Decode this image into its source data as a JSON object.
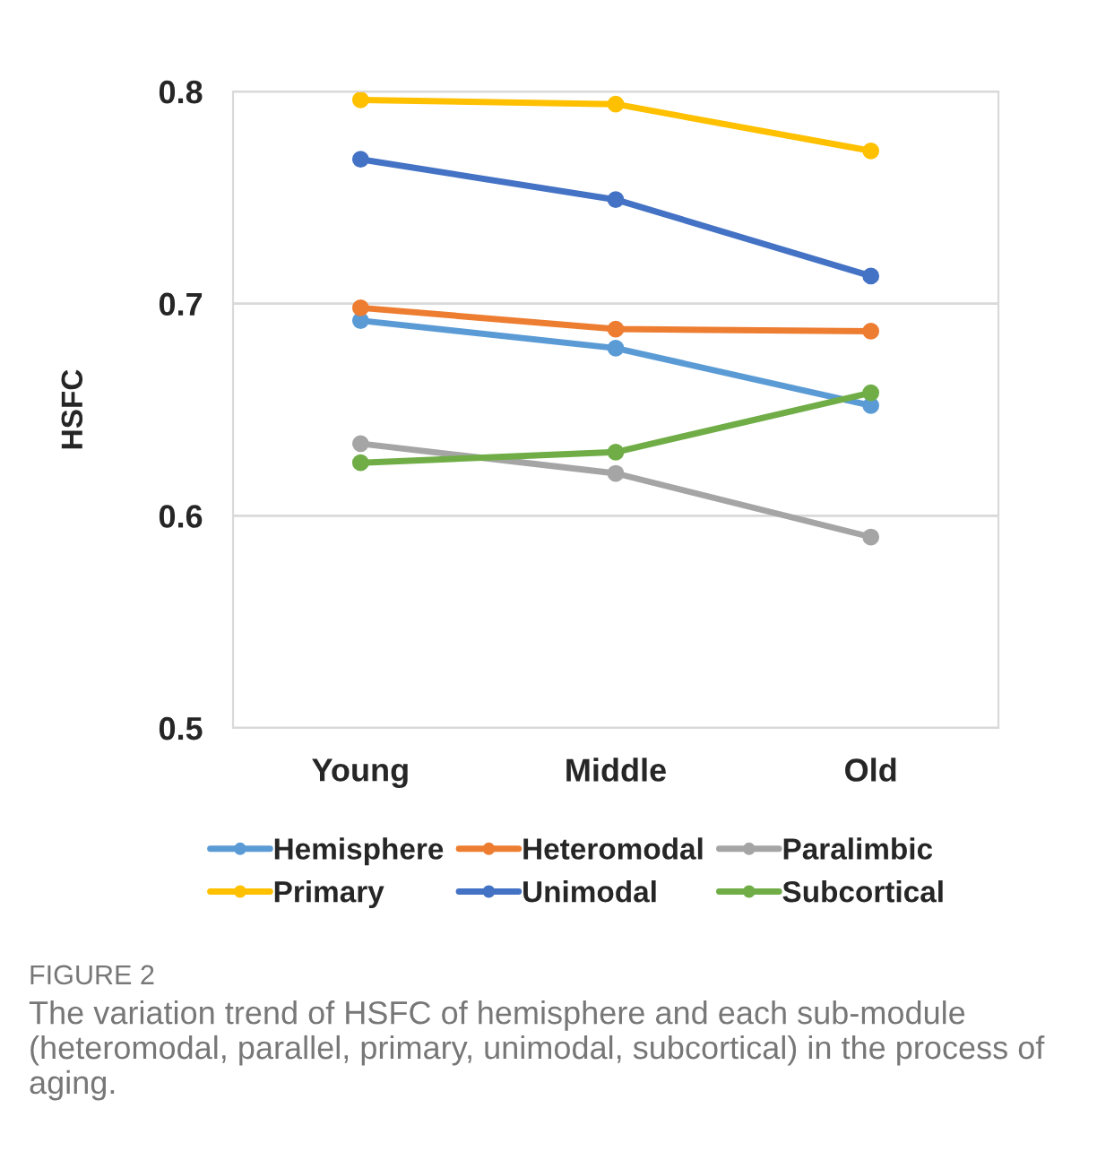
{
  "chart_data": {
    "type": "line",
    "ylabel": "HSFC",
    "categories": [
      "Young",
      "Middle",
      "Old"
    ],
    "series": [
      {
        "name": "Hemisphere",
        "color": "#5b9bd5",
        "values": [
          0.692,
          0.679,
          0.652
        ]
      },
      {
        "name": "Heteromodal",
        "color": "#ed7d31",
        "values": [
          0.698,
          0.688,
          0.687
        ]
      },
      {
        "name": "Paralimbic",
        "color": "#a5a5a5",
        "values": [
          0.634,
          0.62,
          0.59
        ]
      },
      {
        "name": "Primary",
        "color": "#ffc000",
        "values": [
          0.796,
          0.794,
          0.772
        ]
      },
      {
        "name": "Unimodal",
        "color": "#4472c4",
        "values": [
          0.768,
          0.749,
          0.713
        ]
      },
      {
        "name": "Subcortical",
        "color": "#70ad47",
        "values": [
          0.625,
          0.63,
          0.658
        ]
      }
    ],
    "ylim": [
      0.5,
      0.8
    ],
    "yticks": [
      0.5,
      0.6,
      0.7,
      0.8
    ],
    "grid": "y",
    "legend": "bottom",
    "marker": "circle",
    "line_style": "solid",
    "annotations": [
      "FIGURE 2",
      "The variation trend of HSFC of hemisphere and each sub-module (heteromodal, parallel, primary, unimodal, subcortical) in the process of aging."
    ]
  }
}
